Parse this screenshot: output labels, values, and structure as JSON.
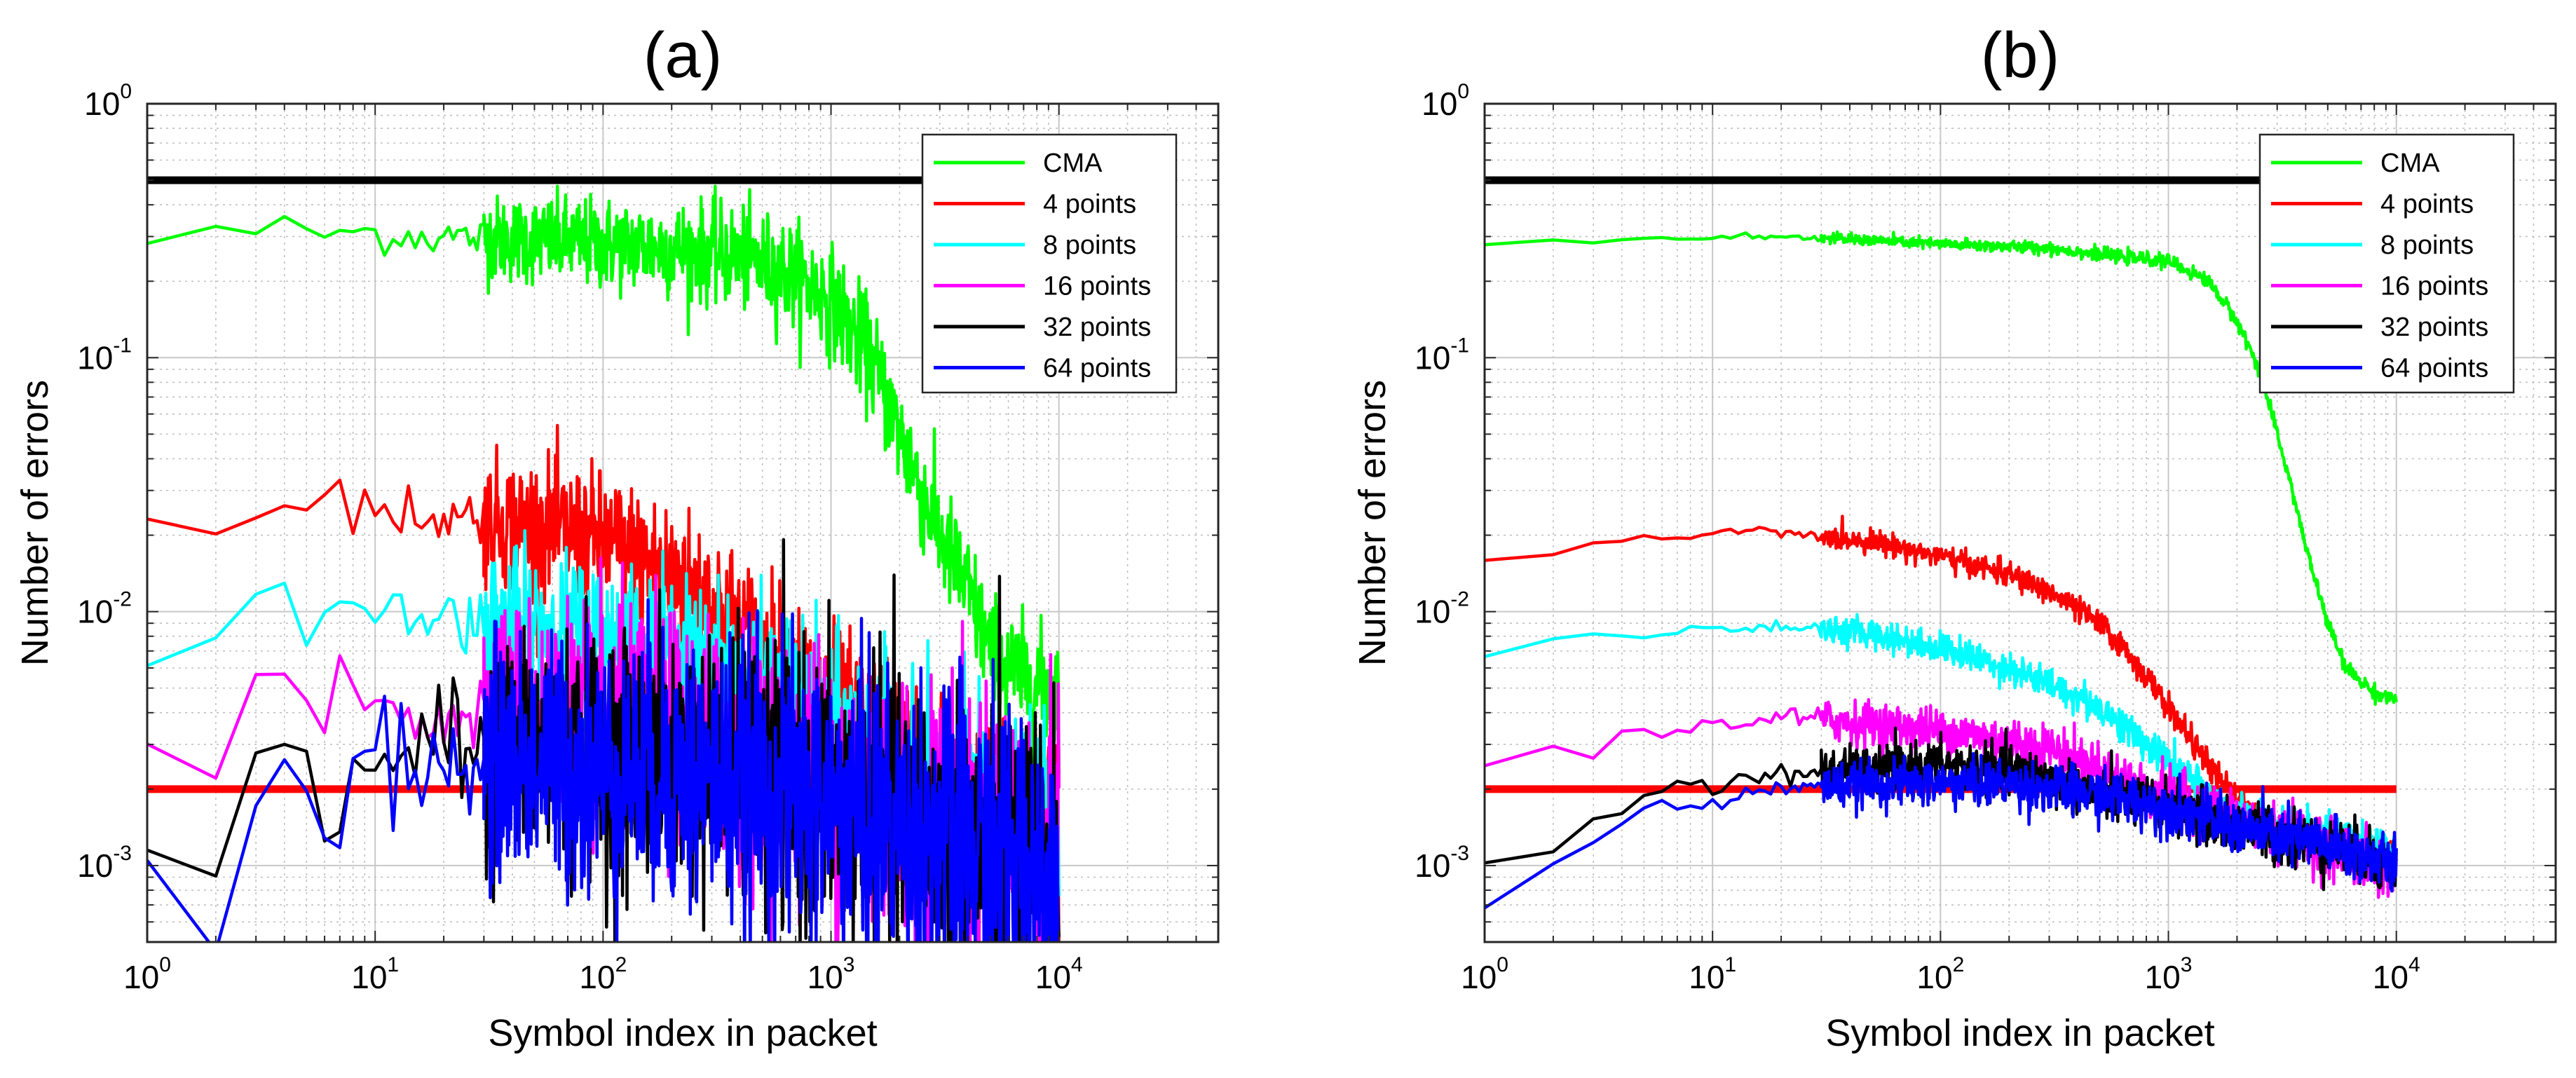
{
  "chart_data": [
    {
      "type": "line",
      "title": "(a)",
      "xlabel": "Symbol index in packet",
      "ylabel": "Number of errors",
      "x_scale": "log",
      "y_scale": "log",
      "xlim": [
        1,
        50000
      ],
      "ylim": [
        0.0005,
        1
      ],
      "grid": true,
      "legend_position": "top-right",
      "x_ticks": [
        {
          "base": "10",
          "exp": "0",
          "value": 1
        },
        {
          "base": "10",
          "exp": "1",
          "value": 10
        },
        {
          "base": "10",
          "exp": "2",
          "value": 100
        },
        {
          "base": "10",
          "exp": "3",
          "value": 1000
        },
        {
          "base": "10",
          "exp": "4",
          "value": 10000
        }
      ],
      "y_ticks": [
        {
          "base": "10",
          "exp": "0",
          "value": 1
        },
        {
          "base": "10",
          "exp": "-1",
          "value": 0.1
        },
        {
          "base": "10",
          "exp": "-2",
          "value": 0.01
        },
        {
          "base": "10",
          "exp": "-3",
          "value": 0.001
        }
      ],
      "series": [
        {
          "name": "CMA",
          "color": "#00ff00",
          "noise": 0.12,
          "points": [
            [
              1,
              0.29
            ],
            [
              2,
              0.3
            ],
            [
              3,
              0.32
            ],
            [
              5,
              0.31
            ],
            [
              10,
              0.31
            ],
            [
              20,
              0.3
            ],
            [
              50,
              0.29
            ],
            [
              100,
              0.28
            ],
            [
              200,
              0.27
            ],
            [
              400,
              0.25
            ],
            [
              700,
              0.21
            ],
            [
              1000,
              0.17
            ],
            [
              1500,
              0.1
            ],
            [
              2000,
              0.05
            ],
            [
              2500,
              0.03
            ],
            [
              3000,
              0.02
            ],
            [
              4000,
              0.012
            ],
            [
              5000,
              0.007
            ],
            [
              6000,
              0.006
            ],
            [
              8000,
              0.005
            ],
            [
              10000,
              0.005
            ]
          ]
        },
        {
          "name": "4 points",
          "color": "#ff0000",
          "noise": 0.18,
          "points": [
            [
              1,
              0.02
            ],
            [
              2,
              0.019
            ],
            [
              3,
              0.029
            ],
            [
              5,
              0.024
            ],
            [
              10,
              0.026
            ],
            [
              20,
              0.024
            ],
            [
              50,
              0.022
            ],
            [
              100,
              0.019
            ],
            [
              200,
              0.014
            ],
            [
              300,
              0.011
            ],
            [
              500,
              0.007
            ],
            [
              700,
              0.0055
            ],
            [
              1000,
              0.0042
            ],
            [
              1500,
              0.0032
            ],
            [
              2000,
              0.0026
            ],
            [
              3000,
              0.0022
            ],
            [
              5000,
              0.0016
            ],
            [
              10000,
              0.0012
            ]
          ]
        },
        {
          "name": "8 points",
          "color": "#00ffff",
          "noise": 0.2,
          "points": [
            [
              1,
              0.0073
            ],
            [
              2,
              0.0072
            ],
            [
              3,
              0.011
            ],
            [
              5,
              0.0098
            ],
            [
              10,
              0.01
            ],
            [
              20,
              0.0095
            ],
            [
              50,
              0.0088
            ],
            [
              100,
              0.008
            ],
            [
              200,
              0.0066
            ],
            [
              300,
              0.0058
            ],
            [
              500,
              0.0048
            ],
            [
              1000,
              0.0035
            ],
            [
              2000,
              0.0025
            ],
            [
              5000,
              0.0017
            ],
            [
              10000,
              0.0012
            ]
          ]
        },
        {
          "name": "16 points",
          "color": "#ff00ff",
          "noise": 0.3,
          "points": [
            [
              1,
              0.0031
            ],
            [
              2,
              0.0027
            ],
            [
              3,
              0.0043
            ],
            [
              5,
              0.0045
            ],
            [
              10,
              0.0044
            ],
            [
              20,
              0.0042
            ],
            [
              50,
              0.004
            ],
            [
              100,
              0.0037
            ],
            [
              200,
              0.0033
            ],
            [
              500,
              0.0027
            ],
            [
              1000,
              0.0022
            ],
            [
              2000,
              0.0018
            ],
            [
              5000,
              0.0013
            ],
            [
              10000,
              0.001
            ]
          ]
        },
        {
          "name": "32 points",
          "color": "#000000",
          "noise": 0.32,
          "points": [
            [
              1,
              0.0016
            ],
            [
              2,
              0.00095
            ],
            [
              3,
              0.0022
            ],
            [
              4,
              0.0032
            ],
            [
              6,
              0.0013
            ],
            [
              8,
              0.0026
            ],
            [
              10,
              0.0028
            ],
            [
              20,
              0.0029
            ],
            [
              50,
              0.0028
            ],
            [
              100,
              0.0027
            ],
            [
              200,
              0.0025
            ],
            [
              500,
              0.0022
            ],
            [
              1000,
              0.0018
            ],
            [
              2000,
              0.0015
            ],
            [
              5000,
              0.0011
            ],
            [
              10000,
              0.0009
            ]
          ]
        },
        {
          "name": "64 points",
          "color": "#0000ff",
          "noise": 0.34,
          "points": [
            [
              1,
              0.0014
            ],
            [
              2,
              0.00077
            ],
            [
              3,
              0.0016
            ],
            [
              4,
              0.0024
            ],
            [
              6,
              0.00105
            ],
            [
              8,
              0.0021
            ],
            [
              10,
              0.0024
            ],
            [
              20,
              0.0025
            ],
            [
              50,
              0.0025
            ],
            [
              100,
              0.0024
            ],
            [
              200,
              0.0023
            ],
            [
              500,
              0.002
            ],
            [
              1000,
              0.0017
            ],
            [
              2000,
              0.0014
            ],
            [
              5000,
              0.0011
            ],
            [
              10000,
              0.0009
            ]
          ]
        }
      ],
      "reference_lines": [
        {
          "y": 0.5,
          "color": "#000000",
          "xmax": 10000
        },
        {
          "y": 0.002,
          "color": "#ff0000",
          "xmax": 10000
        }
      ]
    },
    {
      "type": "line",
      "title": "(b)",
      "xlabel": "Symbol index in packet",
      "ylabel": "Number of errors",
      "x_scale": "log",
      "y_scale": "log",
      "xlim": [
        1,
        50000
      ],
      "ylim": [
        0.0005,
        1
      ],
      "grid": true,
      "legend_position": "top-right",
      "x_ticks": [
        {
          "base": "10",
          "exp": "0",
          "value": 1
        },
        {
          "base": "10",
          "exp": "1",
          "value": 10
        },
        {
          "base": "10",
          "exp": "2",
          "value": 100
        },
        {
          "base": "10",
          "exp": "3",
          "value": 1000
        },
        {
          "base": "10",
          "exp": "4",
          "value": 10000
        }
      ],
      "y_ticks": [
        {
          "base": "10",
          "exp": "0",
          "value": 1
        },
        {
          "base": "10",
          "exp": "-1",
          "value": 0.1
        },
        {
          "base": "10",
          "exp": "-2",
          "value": 0.01
        },
        {
          "base": "10",
          "exp": "-3",
          "value": 0.001
        }
      ],
      "series": [
        {
          "name": "CMA",
          "color": "#00ff00",
          "noise": 0.015,
          "points": [
            [
              1,
              0.28
            ],
            [
              3,
              0.29
            ],
            [
              10,
              0.3
            ],
            [
              20,
              0.3
            ],
            [
              50,
              0.29
            ],
            [
              100,
              0.28
            ],
            [
              300,
              0.27
            ],
            [
              600,
              0.25
            ],
            [
              1000,
              0.24
            ],
            [
              1500,
              0.2
            ],
            [
              2000,
              0.14
            ],
            [
              2500,
              0.09
            ],
            [
              3000,
              0.05
            ],
            [
              3500,
              0.03
            ],
            [
              4000,
              0.018
            ],
            [
              5000,
              0.009
            ],
            [
              6000,
              0.006
            ],
            [
              8000,
              0.0048
            ],
            [
              10000,
              0.0045
            ]
          ]
        },
        {
          "name": "4 points",
          "color": "#ff0000",
          "noise": 0.03,
          "points": [
            [
              1,
              0.0165
            ],
            [
              3,
              0.018
            ],
            [
              10,
              0.02
            ],
            [
              16,
              0.0215
            ],
            [
              20,
              0.02
            ],
            [
              50,
              0.019
            ],
            [
              100,
              0.0165
            ],
            [
              200,
              0.014
            ],
            [
              300,
              0.012
            ],
            [
              500,
              0.009
            ],
            [
              700,
              0.0065
            ],
            [
              1000,
              0.0042
            ],
            [
              1500,
              0.0025
            ],
            [
              2000,
              0.0018
            ],
            [
              3000,
              0.0014
            ],
            [
              5000,
              0.0012
            ],
            [
              10000,
              0.0011
            ]
          ]
        },
        {
          "name": "8 points",
          "color": "#00ffff",
          "noise": 0.04,
          "points": [
            [
              1,
              0.007
            ],
            [
              3,
              0.0078
            ],
            [
              10,
              0.0085
            ],
            [
              20,
              0.0088
            ],
            [
              50,
              0.0082
            ],
            [
              100,
              0.0072
            ],
            [
              200,
              0.006
            ],
            [
              300,
              0.0052
            ],
            [
              500,
              0.0042
            ],
            [
              700,
              0.0033
            ],
            [
              1000,
              0.0026
            ],
            [
              1500,
              0.0019
            ],
            [
              2000,
              0.0016
            ],
            [
              5000,
              0.0013
            ],
            [
              10000,
              0.0011
            ]
          ]
        },
        {
          "name": "16 points",
          "color": "#ff00ff",
          "noise": 0.06,
          "points": [
            [
              1,
              0.0025
            ],
            [
              3,
              0.003
            ],
            [
              10,
              0.0036
            ],
            [
              20,
              0.0039
            ],
            [
              50,
              0.0036
            ],
            [
              100,
              0.0034
            ],
            [
              200,
              0.0031
            ],
            [
              300,
              0.0029
            ],
            [
              500,
              0.0024
            ],
            [
              700,
              0.0021
            ],
            [
              1000,
              0.0019
            ],
            [
              2000,
              0.0015
            ],
            [
              5000,
              0.0012
            ],
            [
              10000,
              0.0009
            ]
          ]
        },
        {
          "name": "32 points",
          "color": "#000000",
          "noise": 0.06,
          "points": [
            [
              1,
              0.00095
            ],
            [
              2,
              0.0012
            ],
            [
              3,
              0.0016
            ],
            [
              5,
              0.0019
            ],
            [
              10,
              0.0021
            ],
            [
              20,
              0.0023
            ],
            [
              50,
              0.0024
            ],
            [
              100,
              0.0025
            ],
            [
              200,
              0.0024
            ],
            [
              300,
              0.0022
            ],
            [
              500,
              0.0019
            ],
            [
              1000,
              0.0017
            ],
            [
              2000,
              0.0014
            ],
            [
              5000,
              0.0012
            ],
            [
              10000,
              0.001
            ]
          ]
        },
        {
          "name": "64 points",
          "color": "#0000ff",
          "noise": 0.06,
          "points": [
            [
              1,
              0.00075
            ],
            [
              2,
              0.00095
            ],
            [
              3,
              0.0013
            ],
            [
              5,
              0.0016
            ],
            [
              10,
              0.0018
            ],
            [
              20,
              0.002
            ],
            [
              50,
              0.0021
            ],
            [
              100,
              0.0021
            ],
            [
              200,
              0.0021
            ],
            [
              300,
              0.002
            ],
            [
              500,
              0.0019
            ],
            [
              1000,
              0.0017
            ],
            [
              2000,
              0.0014
            ],
            [
              5000,
              0.0012
            ],
            [
              10000,
              0.001
            ]
          ]
        }
      ],
      "reference_lines": [
        {
          "y": 0.5,
          "color": "#000000",
          "xmax": 10000
        },
        {
          "y": 0.002,
          "color": "#ff0000",
          "xmax": 10000
        }
      ]
    }
  ]
}
